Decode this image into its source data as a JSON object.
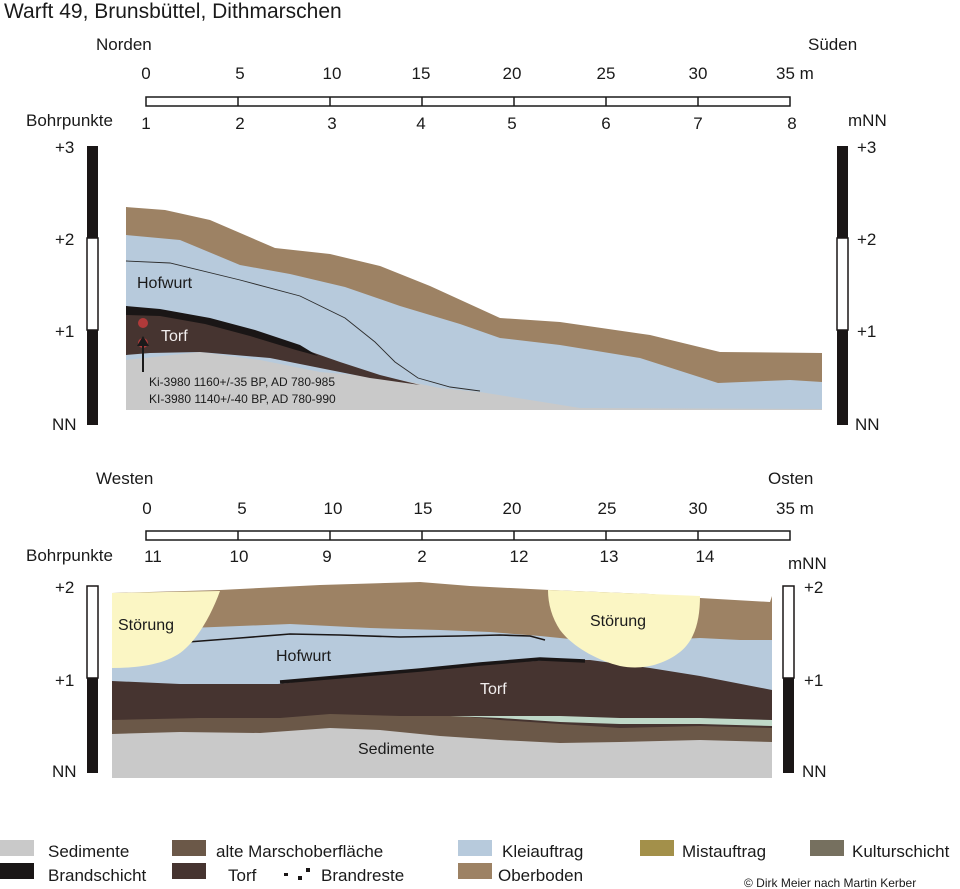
{
  "title": "Warft 49, Brunsbüttel, Dithmarschen",
  "colors": {
    "sedimente": "#c9c9c9",
    "alte_marsch": "#6b5848",
    "kleiauftrag": "#b7cadc",
    "mistauftrag": "#a3904a",
    "kulturschicht": "#76705f",
    "brandschicht": "#1a1616",
    "torf": "#463430",
    "oberboden": "#9d8264",
    "stoerung": "#fbf6c4",
    "dots": "#b03a3a",
    "greenish": "#bfd8c8"
  },
  "profile_top": {
    "left_direction": "Norden",
    "right_direction": "Süden",
    "scale_ticks": [
      "0",
      "5",
      "10",
      "15",
      "20",
      "25",
      "30",
      "35 m"
    ],
    "bohrpunkte_label": "Bohrpunkte",
    "bohrpunkte": [
      "1",
      "2",
      "3",
      "4",
      "5",
      "6",
      "7",
      "8"
    ],
    "unit_label": "mNN",
    "left_levels": [
      "+3",
      "+2",
      "+1",
      "NN"
    ],
    "right_levels": [
      "+3",
      "+2",
      "+1",
      "NN"
    ],
    "labels": {
      "hofwurt": "Hofwurt",
      "torf": "Torf",
      "dating_1": "Ki-3980  1160+/-35 BP, AD 780-985",
      "dating_2": "KI-3980  1140+/-40 BP, AD 780-990"
    }
  },
  "profile_bottom": {
    "left_direction": "Westen",
    "right_direction": "Osten",
    "scale_ticks": [
      "0",
      "5",
      "10",
      "15",
      "20",
      "25",
      "30",
      "35 m"
    ],
    "bohrpunkte_label": "Bohrpunkte",
    "bohrpunkte": [
      "11",
      "10",
      "9",
      "2",
      "12",
      "13",
      "14"
    ],
    "unit_label": "mNN",
    "left_levels": [
      "+2",
      "+1",
      "NN"
    ],
    "right_levels": [
      "+2",
      "+1",
      "NN"
    ],
    "labels": {
      "stoerung_left": "Störung",
      "stoerung_right": "Störung",
      "hofwurt": "Hofwurt",
      "torf": "Torf",
      "sedimente": "Sedimente"
    }
  },
  "legend": {
    "sedimente": "Sedimente",
    "alte_marsch": "alte Marschoberfläche",
    "kleiauftrag": "Kleiauftrag",
    "mistauftrag": "Mistauftrag",
    "kulturschicht": "Kulturschicht",
    "brandschicht": "Brandschicht",
    "torf": "Torf",
    "brandreste": "Brandreste",
    "oberboden": "Oberboden"
  },
  "credit": "© Dirk Meier nach Martin Kerber"
}
